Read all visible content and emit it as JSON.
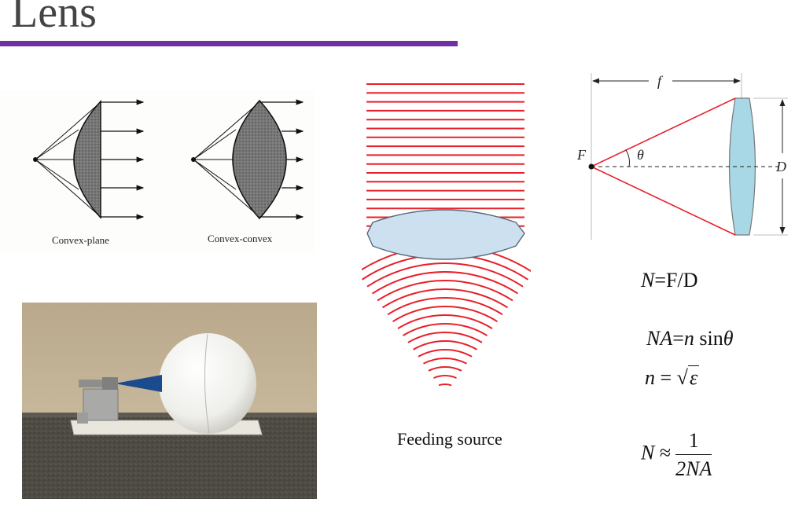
{
  "slide": {
    "title": "Lens"
  },
  "lens_types": {
    "convex_plane_label": "Convex-plane",
    "convex_convex_label": "Convex-convex"
  },
  "feeding": {
    "caption": "Feeding source"
  },
  "geometry_diagram": {
    "f_label": "f",
    "F_label": "F",
    "theta_label": "θ",
    "D_label": "D"
  },
  "formulas": {
    "fnumber": {
      "lhs": "N",
      "rhs": "=F/D"
    },
    "numerical_aperture": {
      "lhs": "NA",
      "eq": "=",
      "n": "n",
      "sin": "sin",
      "theta": "θ"
    },
    "refractive_index": {
      "lhs": "n",
      "eq": "=",
      "radicand": "ε"
    },
    "approximation": {
      "lhs": "N",
      "approx": "≈",
      "numerator": "1",
      "denominator": "2NA"
    }
  },
  "colors": {
    "accent_rule": "#7030a0",
    "ray_red": "#e8202a",
    "lens_fill": "#cde0ef",
    "lens_cyan": "#a8d8e6"
  }
}
